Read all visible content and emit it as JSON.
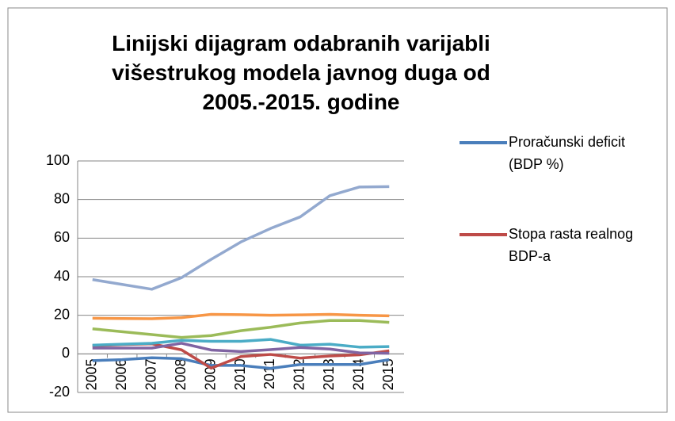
{
  "chart_data": {
    "type": "line",
    "title": "Linijski dijagram odabranih varijabli višestrukog modela javnog duga od 2005.-2015. godine",
    "categories": [
      "2005",
      "2006",
      "2007",
      "2008",
      "2009",
      "2010",
      "2011",
      "2012",
      "2013",
      "2014",
      "2015"
    ],
    "series": [
      {
        "name": "Proračunski deficit (BDP %)",
        "color": "#4a7ebb",
        "values": [
          -3.5,
          -3,
          -2,
          -2.5,
          -6,
          -6,
          -7.5,
          -5.5,
          -5.5,
          -5.5,
          -3
        ]
      },
      {
        "name": "Stopa rasta realnog BDP-a",
        "color": "#be4b48",
        "values": [
          4.2,
          4.8,
          5.2,
          2.1,
          -7.4,
          -1.4,
          -0.3,
          -2.2,
          -1.1,
          -0.5,
          1.6
        ]
      },
      {
        "color": "#93a9cf",
        "values": [
          38.5,
          36,
          33.5,
          39.5,
          49,
          58,
          65,
          71,
          82,
          86.5,
          86.7
        ]
      },
      {
        "color": "#f79646",
        "values": [
          18.5,
          18.3,
          18.2,
          18.8,
          20.5,
          20.3,
          20,
          20.2,
          20.5,
          20,
          19.7
        ]
      },
      {
        "color": "#9bbb59",
        "values": [
          13,
          11.5,
          10,
          8.5,
          9.5,
          12,
          13.8,
          16,
          17.3,
          17.3,
          16.3
        ]
      },
      {
        "color": "#4bacc6",
        "values": [
          4.5,
          5,
          5.5,
          7,
          6.5,
          6.5,
          7.5,
          4.5,
          5,
          3.5,
          3.8
        ]
      },
      {
        "color": "#8064a2",
        "values": [
          3,
          3,
          3,
          5.5,
          2,
          1.2,
          2.2,
          3.3,
          2.5,
          0.5,
          0.3
        ]
      }
    ],
    "ylim": [
      -20,
      100
    ],
    "yticks": [
      -20,
      0,
      20,
      40,
      60,
      80,
      100
    ],
    "grid": true
  }
}
